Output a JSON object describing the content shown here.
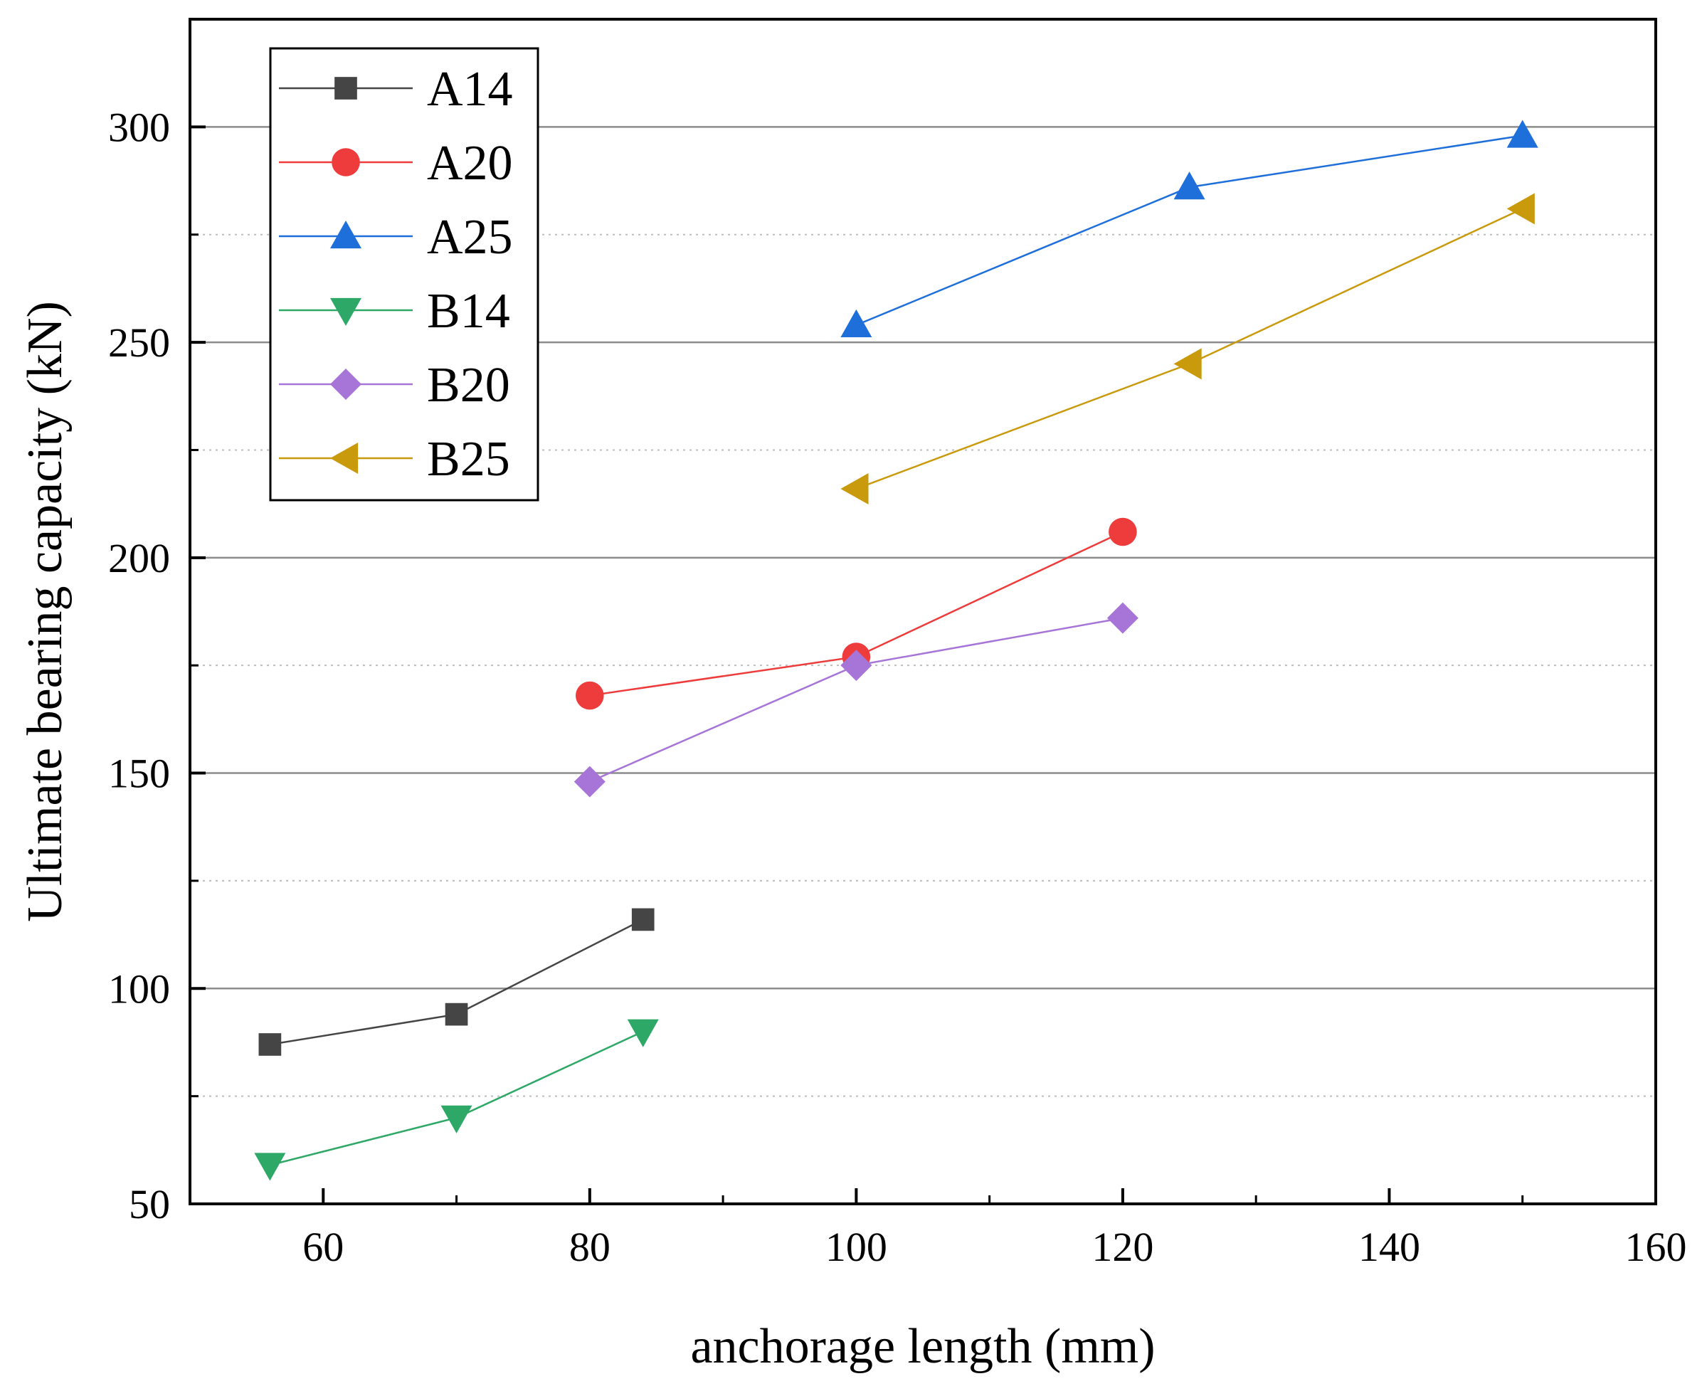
{
  "chart_data": {
    "type": "line",
    "title": "",
    "xlabel": "anchorage length (mm)",
    "ylabel": "Ultimate bearing capacity (kN)",
    "xlim": [
      50,
      160
    ],
    "ylim": [
      50,
      325
    ],
    "xticks": [
      60,
      80,
      100,
      120,
      140,
      160
    ],
    "yticks": [
      50,
      100,
      150,
      200,
      250,
      300
    ],
    "grid": true,
    "legend_position": "top-left",
    "series": [
      {
        "name": "A14",
        "color": "#454545",
        "marker": "square",
        "x": [
          56,
          70,
          84
        ],
        "y": [
          87,
          94,
          116
        ]
      },
      {
        "name": "A20",
        "color": "#ee3b3b",
        "marker": "circle",
        "x": [
          80,
          100,
          120
        ],
        "y": [
          168,
          177,
          206
        ]
      },
      {
        "name": "A25",
        "color": "#1f6fdb",
        "marker": "triangle-up",
        "x": [
          100,
          125,
          150
        ],
        "y": [
          254,
          286,
          298
        ]
      },
      {
        "name": "B14",
        "color": "#2ea866",
        "marker": "triangle-down",
        "x": [
          56,
          70,
          84
        ],
        "y": [
          59,
          70,
          90
        ]
      },
      {
        "name": "B20",
        "color": "#a774d8",
        "marker": "diamond",
        "x": [
          80,
          100,
          120
        ],
        "y": [
          148,
          175,
          186
        ]
      },
      {
        "name": "B25",
        "color": "#c99a0c",
        "marker": "triangle-left",
        "x": [
          100,
          125,
          150
        ],
        "y": [
          216,
          245,
          281
        ]
      }
    ]
  }
}
